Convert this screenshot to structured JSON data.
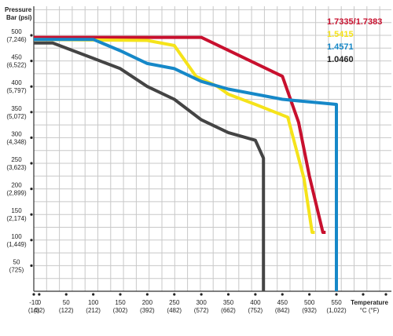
{
  "chart_data": {
    "type": "line",
    "y_title": [
      "Pressure",
      "Bar (psi)"
    ],
    "x_title": [
      "Temperature",
      "°C (°F)"
    ],
    "xlim": [
      -10,
      550
    ],
    "ylim": [
      0,
      500
    ],
    "grid": true,
    "legend_position": "top-right",
    "x_ticks": [
      {
        "value": -10,
        "label": "-10",
        "sub": "(14)"
      },
      {
        "value": 0,
        "label": "0",
        "sub": "(32)"
      },
      {
        "value": 50,
        "label": "50",
        "sub": "(122)"
      },
      {
        "value": 100,
        "label": "100",
        "sub": "(212)"
      },
      {
        "value": 150,
        "label": "150",
        "sub": "(302)"
      },
      {
        "value": 200,
        "label": "200",
        "sub": "(392)"
      },
      {
        "value": 250,
        "label": "250",
        "sub": "(482)"
      },
      {
        "value": 300,
        "label": "300",
        "sub": "(572)"
      },
      {
        "value": 350,
        "label": "350",
        "sub": "(662)"
      },
      {
        "value": 400,
        "label": "400",
        "sub": "(752)"
      },
      {
        "value": 450,
        "label": "450",
        "sub": "(842)"
      },
      {
        "value": 500,
        "label": "500",
        "sub": "(932)"
      },
      {
        "value": 550,
        "label": "550",
        "sub": "(1,022)"
      }
    ],
    "y_ticks": [
      {
        "value": 50,
        "label": "50",
        "sub": "(725)"
      },
      {
        "value": 100,
        "label": "100",
        "sub": "(1,449)"
      },
      {
        "value": 150,
        "label": "150",
        "sub": "(2,174)"
      },
      {
        "value": 200,
        "label": "200",
        "sub": "(2,899)"
      },
      {
        "value": 250,
        "label": "250",
        "sub": "(3,623)"
      },
      {
        "value": 300,
        "label": "300",
        "sub": "(4,348)"
      },
      {
        "value": 350,
        "label": "350",
        "sub": "(5,072)"
      },
      {
        "value": 400,
        "label": "400",
        "sub": "(5,797)"
      },
      {
        "value": 450,
        "label": "450",
        "sub": "(6,522)"
      },
      {
        "value": 500,
        "label": "500",
        "sub": "(7,246)"
      }
    ],
    "series": [
      {
        "name": "1.7335/1.7383",
        "color": "#c8102e",
        "x": [
          -10,
          300,
          450,
          480,
          500,
          525,
          530
        ],
        "y": [
          496,
          496,
          420,
          330,
          225,
          115,
          115
        ]
      },
      {
        "name": "1.5415",
        "color": "#f5e31a",
        "x": [
          -10,
          200,
          250,
          290,
          330,
          350,
          400,
          460,
          490,
          505,
          510
        ],
        "y": [
          492,
          490,
          480,
          420,
          400,
          385,
          365,
          340,
          220,
          115,
          115
        ]
      },
      {
        "name": "1.4571",
        "color": "#1688c8",
        "x": [
          -10,
          100,
          150,
          200,
          250,
          300,
          350,
          450,
          500,
          550,
          550
        ],
        "y": [
          492,
          492,
          470,
          445,
          435,
          410,
          395,
          375,
          370,
          365,
          0
        ]
      },
      {
        "name": "1.0460",
        "color": "#444444",
        "x": [
          -10,
          25,
          100,
          150,
          200,
          250,
          300,
          350,
          400,
          415,
          415
        ],
        "y": [
          485,
          485,
          455,
          435,
          400,
          375,
          335,
          310,
          295,
          260,
          0
        ]
      }
    ]
  }
}
